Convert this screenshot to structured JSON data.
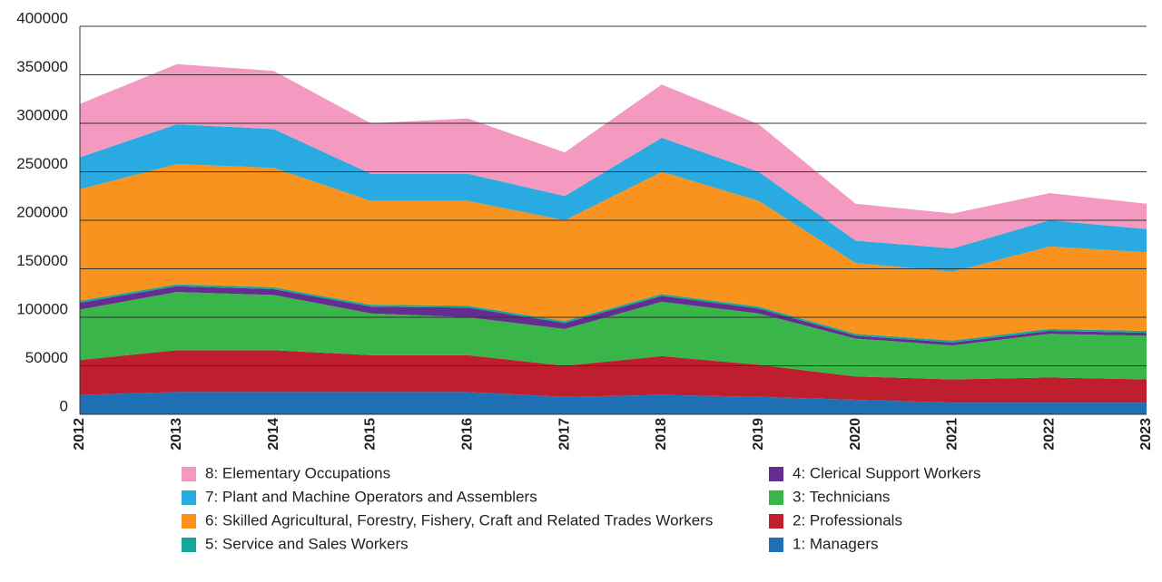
{
  "chart_data": {
    "type": "stacked_area",
    "categories": [
      "2012",
      "2013",
      "2014",
      "2015",
      "2016",
      "2017",
      "2018",
      "2019",
      "2020",
      "2021",
      "2022",
      "2023"
    ],
    "ylim": [
      0,
      400000
    ],
    "yticks": [
      0,
      50000,
      100000,
      150000,
      200000,
      250000,
      300000,
      350000,
      400000
    ],
    "grid": true,
    "series": [
      {
        "name": "1: Managers",
        "color": "#1f6fb5",
        "values": [
          20000,
          23000,
          23000,
          23000,
          23000,
          18000,
          20000,
          18000,
          15000,
          12000,
          12000,
          12000
        ]
      },
      {
        "name": "2: Professionals",
        "color": "#be1e2d",
        "values": [
          36000,
          43000,
          43000,
          38000,
          38000,
          32000,
          40000,
          33000,
          24000,
          24000,
          26000,
          24000
        ]
      },
      {
        "name": "3: Technicians",
        "color": "#39b54a",
        "values": [
          52000,
          60000,
          57000,
          43000,
          39000,
          38000,
          56000,
          53000,
          39000,
          35000,
          45000,
          45000
        ]
      },
      {
        "name": "4: Clerical Support Workers",
        "color": "#662d91",
        "values": [
          7000,
          6000,
          6000,
          7000,
          10000,
          6000,
          6000,
          5000,
          3000,
          3000,
          3000,
          3000
        ]
      },
      {
        "name": "5: Service and Sales Workers",
        "color": "#16a69a",
        "values": [
          2000,
          2000,
          2000,
          2000,
          2000,
          2000,
          2000,
          2000,
          2000,
          2000,
          2000,
          2000
        ]
      },
      {
        "name": "6: Skilled Agricultural, Forestry, Fishery, Craft and Related Trades Workers",
        "color": "#f7931e",
        "values": [
          115000,
          124000,
          123000,
          107000,
          108000,
          104000,
          126000,
          109000,
          73000,
          71000,
          85000,
          81000
        ]
      },
      {
        "name": "7: Plant and Machine Operators and Assemblers",
        "color": "#29abe2",
        "values": [
          33000,
          41000,
          40000,
          28000,
          28000,
          25000,
          35000,
          30000,
          23000,
          24000,
          27000,
          24000
        ]
      },
      {
        "name": "8: Elementary Occupations",
        "color": "#f49ac1",
        "values": [
          55000,
          62000,
          60000,
          52000,
          57000,
          45000,
          55000,
          49000,
          38000,
          36000,
          28000,
          26000
        ]
      }
    ]
  }
}
